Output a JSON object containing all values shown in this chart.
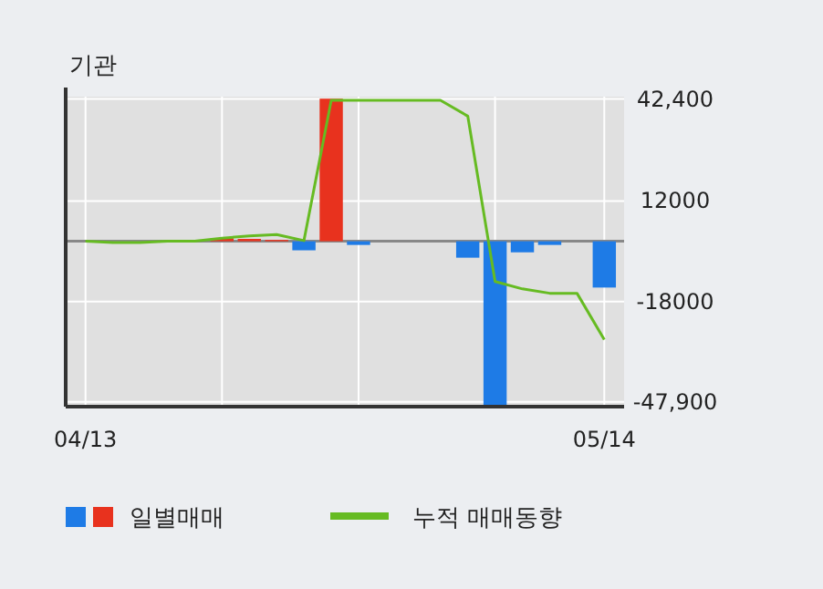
{
  "chart_data": {
    "type": "bar",
    "title": "기관",
    "categories": [
      "04/13",
      null,
      null,
      null,
      null,
      null,
      null,
      null,
      null,
      null,
      null,
      null,
      null,
      null,
      null,
      null,
      null,
      null,
      null,
      "05/14"
    ],
    "series": [
      {
        "name": "일별매매",
        "colors": [
          "#1e7be6",
          "#1e7be6",
          "#1e7be6",
          "#1e7be6",
          "#1e7be6",
          "#e8321e",
          "#e8321e",
          "#e8321e",
          "#1e7be6",
          "#e8321e",
          "#1e7be6",
          "#1e7be6",
          "#1e7be6",
          "#1e7be6",
          "#1e7be6",
          "#1e7be6",
          "#1e7be6",
          "#1e7be6",
          "#1e7be6",
          "#1e7be6"
        ],
        "values": [
          0,
          null,
          0,
          null,
          0,
          900,
          700,
          400,
          -2700,
          42500,
          -1100,
          0,
          0,
          0,
          -4900,
          -48800,
          -3300,
          -1100,
          0,
          -13800
        ]
      },
      {
        "name": "누적 매매동향",
        "type": "line",
        "color": "#66bb22",
        "values": [
          0,
          -400,
          -400,
          0,
          0,
          900,
          1600,
          2000,
          200,
          42000,
          42000,
          42000,
          42000,
          42000,
          37300,
          -12000,
          -14200,
          -15500,
          -15500,
          -29300
        ]
      }
    ],
    "ylim": [
      -49300,
      43100
    ],
    "yticks": [
      {
        "value": 42400,
        "label": "42,400"
      },
      {
        "value": 12000,
        "label": "12000"
      },
      {
        "value": -18000,
        "label": "-18000"
      },
      {
        "value": -47900,
        "label": "-47,900"
      }
    ],
    "grid": true,
    "legend": "bottom"
  }
}
